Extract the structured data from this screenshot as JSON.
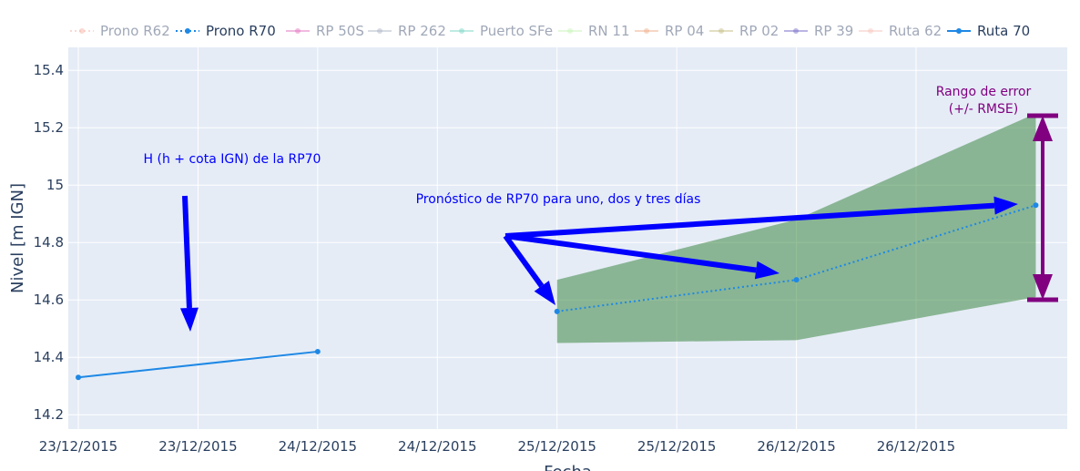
{
  "chart_data": {
    "type": "line",
    "xlabel": "Fecha",
    "ylabel": "Nivel [m IGN]",
    "ylim": [
      14.15,
      15.48
    ],
    "x_ticks": [
      "23/12/2015",
      "23/12/2015",
      "24/12/2015",
      "24/12/2015",
      "25/12/2015",
      "25/12/2015",
      "26/12/2015",
      "26/12/2015"
    ],
    "y_ticks": [
      14.2,
      14.4,
      14.6,
      14.8,
      15.0,
      15.2,
      15.4
    ],
    "y_tick_labels": [
      "14.2",
      "14.4",
      "14.6",
      "14.8",
      "15",
      "15.2",
      "15.4"
    ],
    "grid": true,
    "legend_position": "top",
    "legend": [
      {
        "name": "Prono R62",
        "color": "#f8b4a8",
        "style": "dotted",
        "active": false
      },
      {
        "name": "Prono R70",
        "color": "#1e88e5",
        "style": "dotted",
        "active": true
      },
      {
        "name": "RP 50S",
        "color": "#e377c2",
        "style": "solid",
        "active": false
      },
      {
        "name": "RP 262",
        "color": "#b0b8c8",
        "style": "solid",
        "active": false
      },
      {
        "name": "Puerto SFe",
        "color": "#7fd8c8",
        "style": "solid",
        "active": false
      },
      {
        "name": "RN 11",
        "color": "#c8f5b8",
        "style": "solid",
        "active": false
      },
      {
        "name": "RP 04",
        "color": "#f0b08c",
        "style": "solid",
        "active": false
      },
      {
        "name": "RP 02",
        "color": "#c8c088",
        "style": "solid",
        "active": false
      },
      {
        "name": "RP 39",
        "color": "#7a70c8",
        "style": "solid",
        "active": false
      },
      {
        "name": "Ruta 62",
        "color": "#f8c8c0",
        "style": "solid",
        "active": false
      },
      {
        "name": "Ruta 70",
        "color": "#1e88e5",
        "style": "solid",
        "active": true
      }
    ],
    "series": [
      {
        "name": "Ruta 70",
        "color": "#1e88e5",
        "style": "solid",
        "x": [
          "2015-12-23",
          "2015-12-24"
        ],
        "y": [
          14.33,
          14.42
        ]
      },
      {
        "name": "Prono R70",
        "color": "#1e88e5",
        "style": "dotted",
        "x": [
          "2015-12-25",
          "2015-12-26",
          "2015-12-27"
        ],
        "y": [
          14.56,
          14.67,
          14.93
        ]
      }
    ],
    "error_band": {
      "color": "#2e7d32",
      "x": [
        "2015-12-25",
        "2015-12-26",
        "2015-12-27"
      ],
      "upper": [
        14.67,
        14.88,
        15.25
      ],
      "lower": [
        14.45,
        14.46,
        14.61
      ]
    },
    "annotations": [
      {
        "text": "H (h + cota IGN) de la RP70",
        "color": "#0000ff"
      },
      {
        "text": "Pronóstico de RP70 para uno, dos y tres días",
        "color": "#0000ff"
      },
      {
        "text": "Rango de error",
        "color": "#800080"
      },
      {
        "text": "(+/- RMSE)",
        "color": "#800080"
      }
    ]
  }
}
